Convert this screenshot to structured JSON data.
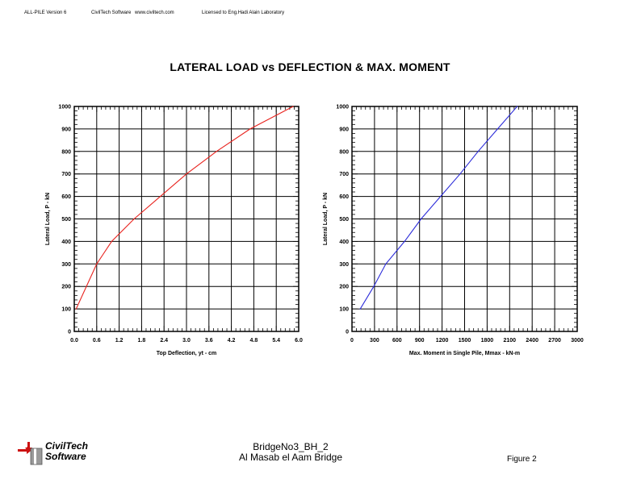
{
  "header": {
    "software": "ALL-PILE Version 6",
    "company": "CivilTech Software",
    "website": "www.civiltech.com",
    "license": "Licensed to   Eng.Hadi    Alain Laboratory"
  },
  "title": "LATERAL LOAD vs DEFLECTION & MAX. MOMENT",
  "chart_data": [
    {
      "type": "line",
      "xlabel": "Top Deflection, yt - cm",
      "ylabel": "Lateral Load,  P - kN",
      "xlim": [
        0,
        6
      ],
      "ylim": [
        0,
        1000
      ],
      "x_ticks": [
        "0.0",
        "0.6",
        "1.2",
        "1.8",
        "2.4",
        "3.0",
        "3.6",
        "4.2",
        "4.8",
        "5.4",
        "6.0"
      ],
      "y_ticks": [
        "0",
        "100",
        "200",
        "300",
        "400",
        "500",
        "600",
        "700",
        "800",
        "900",
        "1000"
      ],
      "grid": true,
      "series": [
        {
          "color": "#e8231e",
          "x": [
            0.05,
            0.6,
            1.0,
            1.6,
            2.3,
            3.0,
            3.8,
            4.7,
            5.85
          ],
          "y": [
            100,
            300,
            400,
            500,
            600,
            700,
            800,
            900,
            1000
          ]
        }
      ]
    },
    {
      "type": "line",
      "xlabel": "Max. Moment in Single Pile,  Mmax - kN-m",
      "ylabel": "Lateral Load,  P - kN",
      "xlim": [
        0,
        3000
      ],
      "ylim": [
        0,
        1000
      ],
      "x_ticks": [
        "0",
        "300",
        "600",
        "900",
        "1200",
        "1500",
        "1800",
        "2100",
        "2400",
        "2700",
        "3000"
      ],
      "y_ticks": [
        "0",
        "100",
        "200",
        "300",
        "400",
        "500",
        "600",
        "700",
        "800",
        "900",
        "1000"
      ],
      "grid": true,
      "series": [
        {
          "color": "#2b2bd9",
          "x": [
            110,
            290,
            450,
            700,
            920,
            1180,
            1440,
            1680,
            1940,
            2200
          ],
          "y": [
            100,
            200,
            300,
            400,
            500,
            600,
            700,
            800,
            900,
            1000
          ]
        }
      ]
    }
  ],
  "footer": {
    "logo_line1": "CivilTech",
    "logo_line2": "Software",
    "project_line1": "BridgeNo3_BH_2",
    "project_line2": "Al Masab el Aam Bridge",
    "figure": "Figure 2"
  }
}
